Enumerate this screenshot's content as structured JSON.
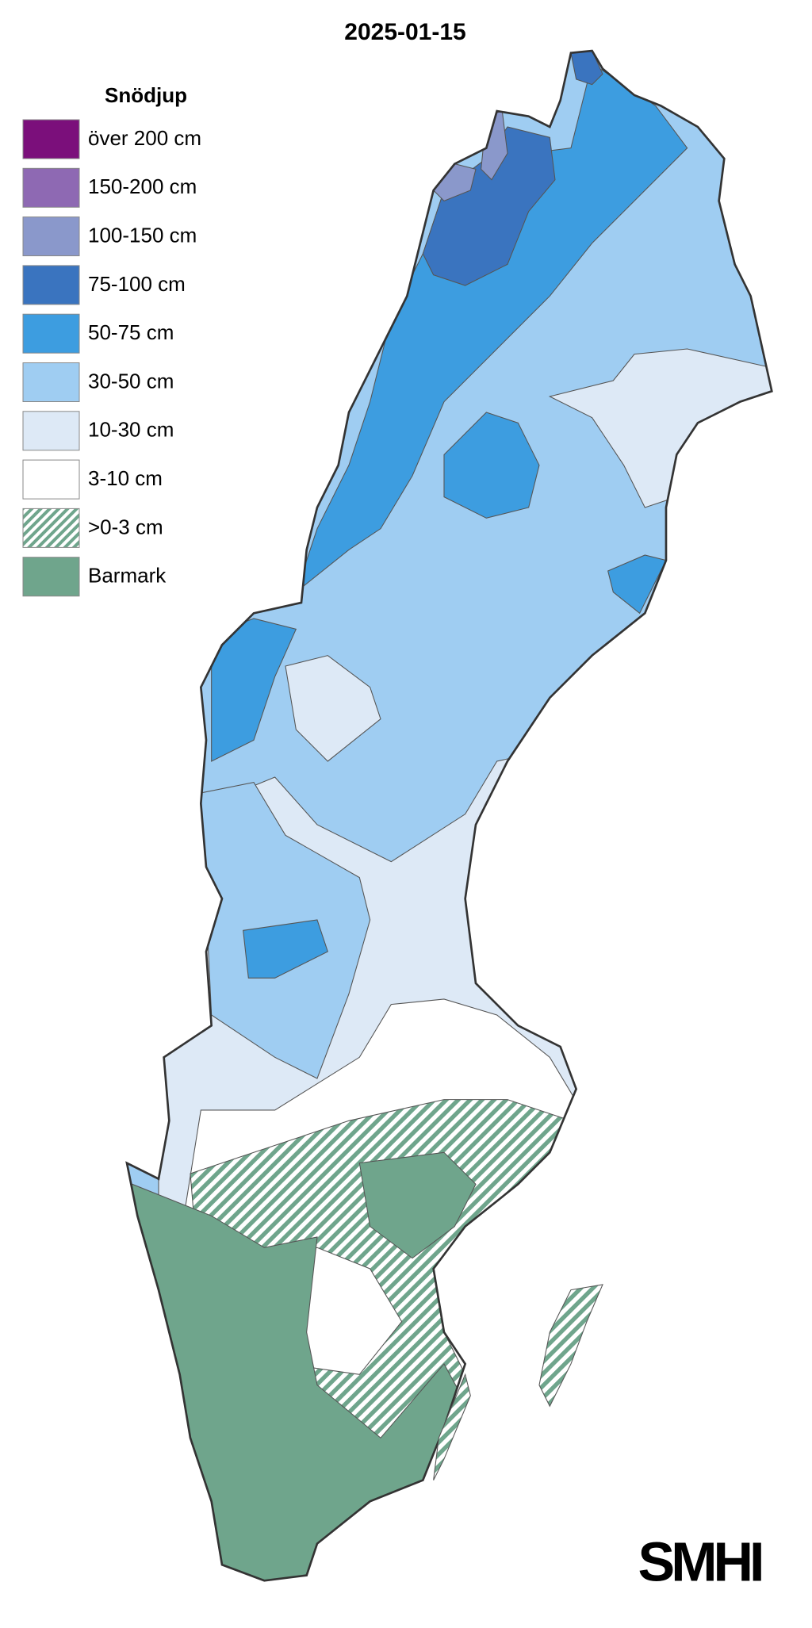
{
  "title": "2025-01-15",
  "legend": {
    "title": "Snödjup",
    "items": [
      {
        "label": "över 200 cm",
        "color": "#7b0f7b"
      },
      {
        "label": "150-200 cm",
        "color": "#8e69b3"
      },
      {
        "label": "100-150 cm",
        "color": "#8a98cb"
      },
      {
        "label": "75-100 cm",
        "color": "#3a74bf"
      },
      {
        "label": "50-75 cm",
        "color": "#3d9de0"
      },
      {
        "label": "30-50 cm",
        "color": "#9fcdf2"
      },
      {
        "label": "10-30 cm",
        "color": "#dde9f6"
      },
      {
        "label": "3-10 cm",
        "color": "#ffffff"
      },
      {
        "label": ">0-3 cm",
        "color": "#6fa58c",
        "hatched": true
      },
      {
        "label": "Barmark",
        "color": "#6fa58c"
      }
    ]
  },
  "logo": "SMHI"
}
